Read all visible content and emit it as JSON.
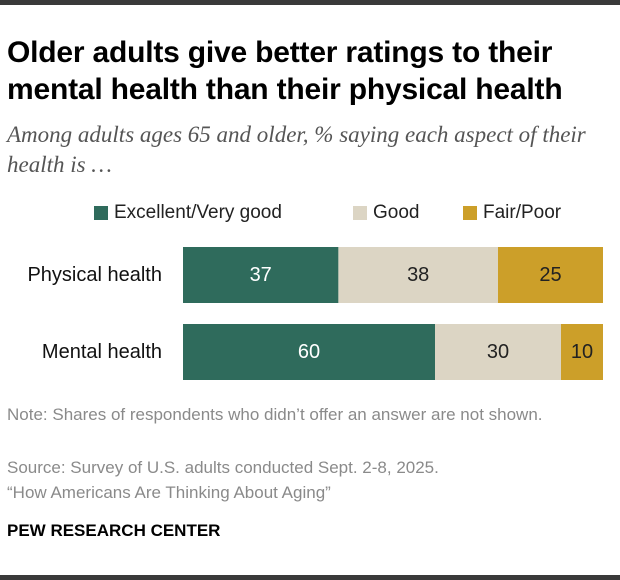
{
  "title": "Older adults give better ratings to their mental health than their physical health",
  "subtitle": "Among adults ages 65 and older, % saying each aspect of their health is …",
  "legend": {
    "items": [
      {
        "label": "Excellent/Very good",
        "color": "#2f6b5c"
      },
      {
        "label": "Good",
        "color": "#dcd5c4"
      },
      {
        "label": "Fair/Poor",
        "color": "#cc9f29"
      }
    ]
  },
  "chart_data": {
    "type": "bar",
    "orientation": "horizontal",
    "stacked": true,
    "categories": [
      "Physical health",
      "Mental health"
    ],
    "series": [
      {
        "name": "Excellent/Very good",
        "values": [
          37,
          60
        ],
        "color": "#2f6b5c",
        "label_color": "#ffffff"
      },
      {
        "name": "Good",
        "values": [
          38,
          30
        ],
        "color": "#dcd5c4",
        "label_color": "#222222"
      },
      {
        "name": "Fair/Poor",
        "values": [
          25,
          10
        ],
        "color": "#cc9f29",
        "label_color": "#222222"
      }
    ],
    "xlim": [
      0,
      100
    ],
    "grid": false,
    "legend_position": "top"
  },
  "footer": {
    "note": "Note: Shares of respondents who didn’t offer an answer are not shown.",
    "source": "Source: Survey of U.S. adults conducted Sept. 2-8, 2025.",
    "report": "“How Americans Are Thinking About Aging”",
    "brand": "PEW RESEARCH CENTER"
  }
}
